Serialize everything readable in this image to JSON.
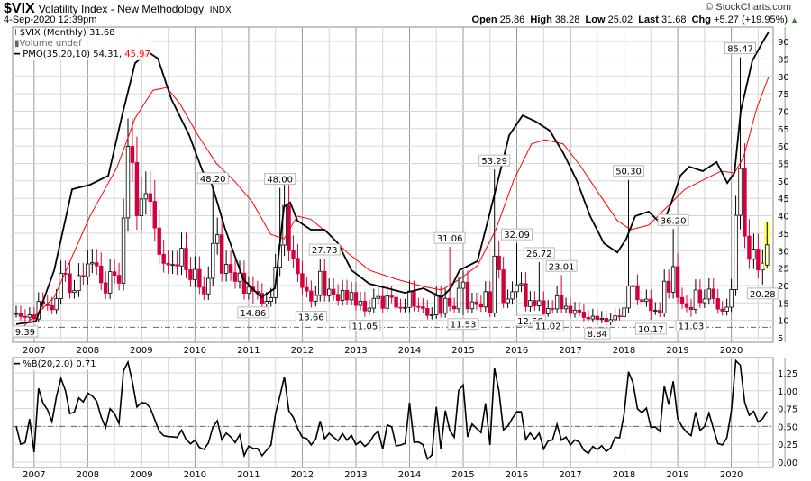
{
  "header": {
    "symbol": "$VIX",
    "name": "Volatility Index - New Methodology",
    "exchange": "INDX",
    "date": "4-Sep-2020 12:39pm",
    "brand": "© StockCharts.com",
    "open_label": "Open",
    "open": "25.86",
    "high_label": "High",
    "high": "38.28",
    "low_label": "Low",
    "low": "25.02",
    "last_label": "Last",
    "last": "31.68",
    "chg_label": "Chg",
    "chg": "+5.27 (+19.95%)",
    "chg_arrow": "▲"
  },
  "legend": {
    "price": "$VIX (Monthly) 31.68",
    "volume": "Volume undef",
    "pmo": "PMO(35,20,10) 54.31,",
    "pmo_signal": "45.97",
    "pctb": "%B(20,2.0) 0.71"
  },
  "colors": {
    "up": "#ffffff",
    "down": "#d4003a",
    "pmo": "#000000",
    "signal": "#ff0000",
    "highlight": "#ffff66"
  },
  "chart_data": [
    {
      "type": "candlestick",
      "title": "$VIX (Monthly)",
      "x_start": "Sep 2006",
      "x_unit": "month",
      "year_labels": [
        "2007",
        "2008",
        "2009",
        "2010",
        "2011",
        "2012",
        "2013",
        "2014",
        "2015",
        "2016",
        "2017",
        "2018",
        "2019",
        "2020"
      ],
      "ylim": [
        4,
        93
      ],
      "yticks": [
        5,
        10,
        15,
        20,
        25,
        30,
        35,
        40,
        45,
        50,
        55,
        60,
        65,
        70,
        75,
        80,
        85,
        90
      ],
      "reference_line": 8,
      "close": [
        11.98,
        11.1,
        10.91,
        11.56,
        10.42,
        15.42,
        14.64,
        14.22,
        13.05,
        16.23,
        23.52,
        23.38,
        18.0,
        18.53,
        22.87,
        22.5,
        26.2,
        26.54,
        25.61,
        20.79,
        17.83,
        23.95,
        22.94,
        20.65,
        39.39,
        59.89,
        55.28,
        40.0,
        44.84,
        46.35,
        44.14,
        36.5,
        28.92,
        26.35,
        25.92,
        26.01,
        25.61,
        30.69,
        24.51,
        21.68,
        24.62,
        19.5,
        17.59,
        22.05,
        32.07,
        34.54,
        23.5,
        26.05,
        23.7,
        21.2,
        23.54,
        17.75,
        19.53,
        18.35,
        17.74,
        14.75,
        15.45,
        16.52,
        25.25,
        31.62,
        42.96,
        29.96,
        27.8,
        23.4,
        19.44,
        18.43,
        15.5,
        17.15,
        24.06,
        17.08,
        18.93,
        17.47,
        15.73,
        18.6,
        15.87,
        18.02,
        14.28,
        15.51,
        12.7,
        13.52,
        16.3,
        16.86,
        13.45,
        17.01,
        16.6,
        13.75,
        13.7,
        13.72,
        18.41,
        14.0,
        13.88,
        13.41,
        11.4,
        11.57,
        16.95,
        11.98,
        16.31,
        14.03,
        13.33,
        19.2,
        20.97,
        13.34,
        15.29,
        14.55,
        13.84,
        18.23,
        12.12,
        28.43,
        24.5,
        15.07,
        16.13,
        18.21,
        20.2,
        20.55,
        13.95,
        15.7,
        14.19,
        15.63,
        11.87,
        13.42,
        13.29,
        17.06,
        13.33,
        14.04,
        11.99,
        12.92,
        12.37,
        10.82,
        10.41,
        11.18,
        10.26,
        10.59,
        9.51,
        10.18,
        11.28,
        11.04,
        13.54,
        19.85,
        19.97,
        15.93,
        15.43,
        16.09,
        12.83,
        12.86,
        12.12,
        21.23,
        18.07,
        25.42,
        16.57,
        14.78,
        13.71,
        13.12,
        18.71,
        15.08,
        16.12,
        18.98,
        16.24,
        13.22,
        12.62,
        13.78,
        18.84,
        40.11,
        53.54,
        34.15,
        27.51,
        30.43,
        24.46,
        26.41,
        31.68
      ],
      "last_bar": {
        "open": 25.86,
        "high": 38.28,
        "low": 25.02,
        "close": 31.68
      },
      "annotations": [
        {
          "i": 2,
          "text": "9.39",
          "kind": "low"
        },
        {
          "i": 44,
          "text": "48.20",
          "kind": "high"
        },
        {
          "i": 53,
          "text": "14.86",
          "kind": "low"
        },
        {
          "i": 59,
          "text": "48.00",
          "kind": "high"
        },
        {
          "i": 66,
          "text": "13.66",
          "kind": "low"
        },
        {
          "i": 69,
          "text": "27.73",
          "kind": "high"
        },
        {
          "i": 78,
          "text": "11.05",
          "kind": "low"
        },
        {
          "i": 97,
          "text": "31.06",
          "kind": "high"
        },
        {
          "i": 100,
          "text": "11.53",
          "kind": "low"
        },
        {
          "i": 107,
          "text": "53.29",
          "kind": "high"
        },
        {
          "i": 112,
          "text": "32.09",
          "kind": "high"
        },
        {
          "i": 115,
          "text": "12.50",
          "kind": "low"
        },
        {
          "i": 117,
          "text": "26.72",
          "kind": "high"
        },
        {
          "i": 119,
          "text": "11.02",
          "kind": "low"
        },
        {
          "i": 122,
          "text": "23.01",
          "kind": "high"
        },
        {
          "i": 130,
          "text": "8.84",
          "kind": "low"
        },
        {
          "i": 137,
          "text": "50.30",
          "kind": "high"
        },
        {
          "i": 142,
          "text": "10.17",
          "kind": "low"
        },
        {
          "i": 147,
          "text": "36.20",
          "kind": "high"
        },
        {
          "i": 151,
          "text": "11.03",
          "kind": "low"
        },
        {
          "i": 162,
          "text": "85.47",
          "kind": "high"
        },
        {
          "i": 167,
          "text": "20.28",
          "kind": "low"
        }
      ],
      "pmo_overlay": [
        [
          0,
          8.9
        ],
        [
          4.4,
          9.7
        ],
        [
          8.5,
          24.4
        ],
        [
          12.5,
          47.6
        ],
        [
          16.5,
          48.9
        ],
        [
          20.6,
          51.5
        ],
        [
          23.6,
          68.3
        ],
        [
          26.6,
          83.8
        ],
        [
          29.6,
          86.9
        ],
        [
          31.7,
          85.1
        ],
        [
          34.7,
          73.5
        ],
        [
          38.7,
          63.1
        ],
        [
          41.7,
          52.8
        ],
        [
          43.8,
          48.9
        ],
        [
          46.8,
          36.0
        ],
        [
          50.8,
          21.8
        ],
        [
          54.8,
          16.6
        ],
        [
          57.9,
          19.2
        ],
        [
          59.9,
          42.5
        ],
        [
          61.3,
          43.8
        ],
        [
          62.9,
          38.6
        ],
        [
          65.9,
          36.0
        ],
        [
          69,
          36.0
        ],
        [
          72,
          32.1
        ],
        [
          75,
          24.4
        ],
        [
          79,
          20.5
        ],
        [
          83,
          19.2
        ],
        [
          87,
          17.9
        ],
        [
          91.1,
          19.2
        ],
        [
          95.2,
          16.6
        ],
        [
          97.2,
          19.2
        ],
        [
          99.2,
          24.4
        ],
        [
          103.2,
          27.0
        ],
        [
          106.3,
          42.5
        ],
        [
          108.3,
          52.8
        ],
        [
          110.3,
          63.1
        ],
        [
          113.3,
          68.8
        ],
        [
          116.3,
          67.0
        ],
        [
          119.4,
          64.4
        ],
        [
          122.4,
          58.0
        ],
        [
          125.4,
          50.2
        ],
        [
          128.4,
          39.9
        ],
        [
          131.5,
          32.1
        ],
        [
          134.5,
          29.5
        ],
        [
          136.5,
          33.4
        ],
        [
          138.5,
          39.9
        ],
        [
          141.5,
          41.2
        ],
        [
          144.6,
          37.3
        ],
        [
          146.6,
          43.8
        ],
        [
          148.6,
          51.5
        ],
        [
          150.6,
          54.1
        ],
        [
          153.6,
          52.8
        ],
        [
          156.7,
          55.4
        ],
        [
          159.1,
          49.4
        ],
        [
          160.7,
          52.3
        ],
        [
          162.1,
          70.0
        ],
        [
          164.7,
          84.5
        ],
        [
          167.3,
          90.5
        ],
        [
          168.3,
          92.6
        ]
      ],
      "signal_overlay": [
        [
          0,
          6.3
        ],
        [
          8.5,
          16.6
        ],
        [
          16.5,
          39.9
        ],
        [
          22.6,
          54.0
        ],
        [
          26.6,
          68.0
        ],
        [
          30.6,
          76.0
        ],
        [
          33.7,
          76.8
        ],
        [
          36.7,
          72.0
        ],
        [
          40.7,
          63.0
        ],
        [
          44.8,
          55.0
        ],
        [
          48.8,
          50.0
        ],
        [
          52.8,
          44.0
        ],
        [
          56.9,
          34.7
        ],
        [
          59.9,
          33.4
        ],
        [
          62.9,
          39.9
        ],
        [
          65.9,
          39.0
        ],
        [
          70,
          34.7
        ],
        [
          74,
          29.5
        ],
        [
          79,
          24.4
        ],
        [
          85.1,
          21.8
        ],
        [
          91.1,
          19.7
        ],
        [
          95.2,
          18.7
        ],
        [
          99.2,
          21.8
        ],
        [
          103.2,
          25.7
        ],
        [
          107.3,
          36.0
        ],
        [
          111.3,
          50.2
        ],
        [
          115.3,
          60.6
        ],
        [
          118.3,
          61.8
        ],
        [
          122.4,
          60.6
        ],
        [
          126.4,
          54.0
        ],
        [
          130.4,
          46.3
        ],
        [
          134.5,
          38.6
        ],
        [
          137.5,
          36.0
        ],
        [
          141.5,
          37.3
        ],
        [
          145.6,
          42.5
        ],
        [
          149.6,
          47.6
        ],
        [
          153.6,
          50.2
        ],
        [
          157.7,
          52.8
        ],
        [
          160.7,
          52.3
        ],
        [
          162.7,
          56.7
        ],
        [
          165.7,
          70.9
        ],
        [
          168.3,
          79.7
        ]
      ]
    },
    {
      "type": "line",
      "title": "%B(20,2.0)",
      "ylim": [
        -0.08,
        1.5
      ],
      "yticks": [
        "0.00",
        "0.25",
        "0.50",
        "0.75",
        "1.00",
        "1.25"
      ],
      "reference_line": 0.5,
      "last": 0.71
    }
  ]
}
